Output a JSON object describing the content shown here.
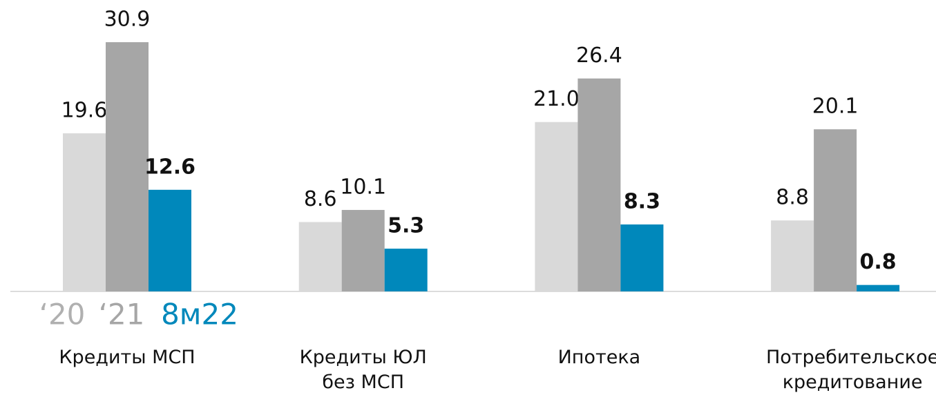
{
  "chart_data": {
    "type": "bar",
    "categories": [
      "Кредиты МСП",
      "Кредиты ЮЛ\nбез МСП",
      "Ипотека",
      "Потребительское\nкредитование"
    ],
    "series": [
      {
        "name": "‘20",
        "color": "#d9d9d9",
        "values": [
          19.6,
          8.6,
          21.0,
          8.8
        ],
        "value_labels": [
          "19.6",
          "8.6",
          "21.0",
          "8.8"
        ]
      },
      {
        "name": "‘21",
        "color": "#a6a6a6",
        "values": [
          30.9,
          10.1,
          26.4,
          20.1
        ],
        "value_labels": [
          "30.9",
          "10.1",
          "26.4",
          "20.1"
        ]
      },
      {
        "name": "8м22",
        "color": "#0088bb",
        "values": [
          12.6,
          5.3,
          8.3,
          0.8
        ],
        "value_labels": [
          "12.6",
          "5.3",
          "8.3",
          "0.8"
        ]
      }
    ]
  }
}
